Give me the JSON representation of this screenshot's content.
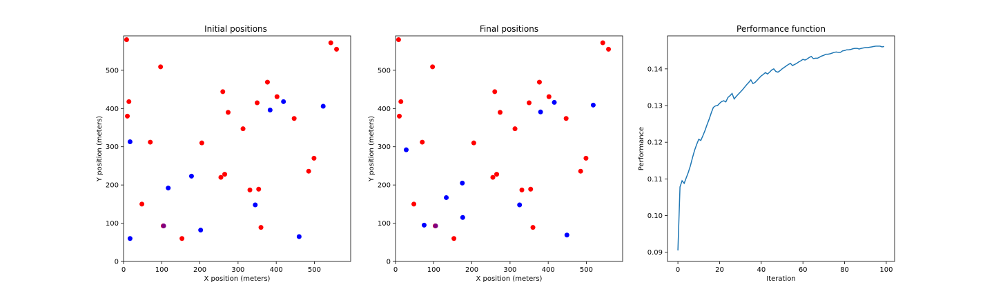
{
  "colors": {
    "red": "#ff0000",
    "blue": "#0000ff",
    "purple": "#800080",
    "line": "#1f77b4"
  },
  "chart_data": [
    {
      "type": "scatter",
      "title": "Initial positions",
      "xlabel": "X position (meters)",
      "ylabel": "Y position (meters)",
      "xlim": [
        0,
        595
      ],
      "ylim": [
        0,
        590
      ],
      "xticks": [
        0,
        100,
        200,
        300,
        400,
        500
      ],
      "yticks": [
        0,
        100,
        200,
        300,
        400,
        500
      ],
      "grid": false,
      "series": [
        {
          "color": "red",
          "x": [
            8,
            14,
            10,
            97,
            70,
            48,
            153,
            104,
            205,
            260,
            274,
            255,
            265,
            313,
            350,
            377,
            402,
            447,
            331,
            354,
            360,
            485,
            499,
            543,
            558
          ],
          "y": [
            580,
            418,
            380,
            509,
            312,
            150,
            60,
            93,
            310,
            444,
            390,
            220,
            228,
            347,
            415,
            469,
            431,
            374,
            187,
            189,
            89,
            236,
            270,
            572,
            555
          ]
        },
        {
          "color": "blue",
          "x": [
            17,
            17,
            117,
            178,
            202,
            345,
            384,
            419,
            523,
            460
          ],
          "y": [
            313,
            60,
            192,
            223,
            82,
            148,
            396,
            418,
            406,
            65
          ]
        },
        {
          "color": "purple",
          "x": [
            105
          ],
          "y": [
            93
          ]
        }
      ]
    },
    {
      "type": "scatter",
      "title": "Final positions",
      "xlabel": "X position (meters)",
      "ylabel": "Y position (meters)",
      "xlim": [
        0,
        595
      ],
      "ylim": [
        0,
        590
      ],
      "xticks": [
        0,
        100,
        200,
        300,
        400,
        500
      ],
      "yticks": [
        0,
        100,
        200,
        300,
        400,
        500
      ],
      "grid": false,
      "series": [
        {
          "color": "red",
          "x": [
            8,
            14,
            10,
            97,
            70,
            48,
            153,
            104,
            205,
            260,
            274,
            255,
            265,
            313,
            350,
            377,
            402,
            447,
            331,
            354,
            360,
            485,
            499,
            543,
            558
          ],
          "y": [
            580,
            418,
            380,
            509,
            312,
            150,
            60,
            93,
            310,
            444,
            390,
            220,
            228,
            347,
            415,
            469,
            431,
            374,
            187,
            189,
            89,
            236,
            270,
            572,
            555
          ]
        },
        {
          "color": "blue",
          "x": [
            28,
            75,
            133,
            175,
            176,
            325,
            380,
            416,
            518,
            449
          ],
          "y": [
            292,
            95,
            167,
            205,
            115,
            148,
            391,
            416,
            409,
            69
          ]
        },
        {
          "color": "purple",
          "x": [
            105
          ],
          "y": [
            93
          ]
        }
      ]
    },
    {
      "type": "line",
      "title": "Performance function",
      "xlabel": "Iteration",
      "ylabel": "Performance",
      "xlim": [
        -5,
        104
      ],
      "ylim": [
        0.0875,
        0.149
      ],
      "xticks": [
        0,
        20,
        40,
        60,
        80,
        100
      ],
      "yticks": [
        0.09,
        0.1,
        0.11,
        0.12,
        0.13,
        0.14
      ],
      "grid": false,
      "series": [
        {
          "color": "line",
          "values": [
            0.0905,
            0.1078,
            0.1095,
            0.1088,
            0.1103,
            0.1118,
            0.1136,
            0.1158,
            0.1178,
            0.1194,
            0.1208,
            0.1205,
            0.1218,
            0.1232,
            0.1248,
            0.1263,
            0.128,
            0.1295,
            0.1299,
            0.13,
            0.1306,
            0.1311,
            0.1313,
            0.131,
            0.1322,
            0.1327,
            0.1333,
            0.1318,
            0.1325,
            0.1331,
            0.1337,
            0.1343,
            0.135,
            0.1357,
            0.1363,
            0.137,
            0.136,
            0.1363,
            0.1369,
            0.1375,
            0.1381,
            0.1385,
            0.139,
            0.1386,
            0.1391,
            0.1397,
            0.14,
            0.1393,
            0.1391,
            0.1395,
            0.14,
            0.1404,
            0.1408,
            0.1412,
            0.1415,
            0.1409,
            0.1412,
            0.1415,
            0.1419,
            0.1422,
            0.1426,
            0.1424,
            0.1427,
            0.1431,
            0.1434,
            0.1428,
            0.1429,
            0.1429,
            0.1432,
            0.1435,
            0.1437,
            0.144,
            0.144,
            0.1441,
            0.1443,
            0.1445,
            0.1446,
            0.1445,
            0.1445,
            0.1449,
            0.145,
            0.1452,
            0.1452,
            0.1453,
            0.1455,
            0.1456,
            0.1456,
            0.1454,
            0.1456,
            0.1457,
            0.1458,
            0.1458,
            0.1459,
            0.146,
            0.1461,
            0.1462,
            0.1462,
            0.1462,
            0.146,
            0.1461
          ]
        }
      ]
    }
  ]
}
